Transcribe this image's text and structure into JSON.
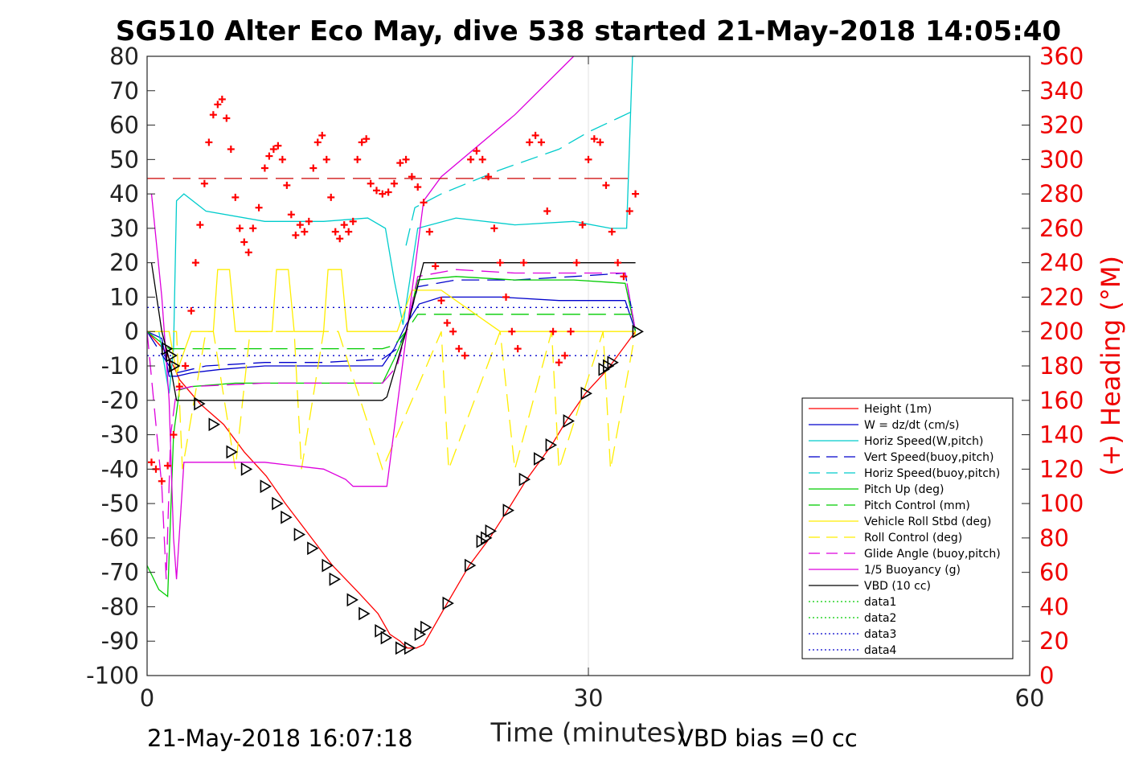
{
  "chart_data": {
    "type": "line",
    "title": "SG510 Alter Eco May, dive 538 started 21-May-2018 14:05:40",
    "xlabel": "Time (minutes)",
    "ylabel_right": "(+) Heading (°M)",
    "xlim": [
      0,
      60
    ],
    "ylim_left": [
      -100,
      80
    ],
    "ylim_right": [
      0,
      360
    ],
    "x_ticks": [
      0,
      30,
      60
    ],
    "y_ticks_left": [
      -100,
      -90,
      -80,
      -70,
      -60,
      -50,
      -40,
      -30,
      -20,
      -10,
      0,
      10,
      20,
      30,
      40,
      50,
      60,
      70,
      80
    ],
    "y_ticks_right": [
      0,
      20,
      40,
      60,
      80,
      100,
      120,
      140,
      160,
      180,
      200,
      220,
      240,
      260,
      280,
      300,
      320,
      340,
      360
    ],
    "grid": true,
    "legend_position": "lower-right",
    "footer_left": "21-May-2018 16:07:18",
    "footer_right": "VBD bias =0 cc",
    "series": [
      {
        "name": "Height (1m)",
        "color": "#ff0000",
        "style": "solid",
        "x": [
          0,
          1.3,
          1.5,
          1.8,
          2.2,
          3.6,
          5.2,
          6.6,
          8.1,
          9.4,
          11.0,
          12.6,
          14.4,
          15.7,
          16.5,
          17.2,
          17.7,
          18.3,
          18.8,
          20.4,
          21.9,
          23.3,
          24.5,
          25.8,
          27.5,
          28.5,
          29.8,
          31.3,
          33.2
        ],
        "y": [
          0,
          -6,
          -8,
          -10,
          -14,
          -21,
          -27,
          -35,
          -42,
          -50,
          -59,
          -68,
          -76,
          -82,
          -88,
          -90,
          -92,
          -92,
          -91,
          -79,
          -68,
          -60,
          -52,
          -43,
          -33,
          -26,
          -18,
          -11,
          0
        ]
      },
      {
        "name": "W = dz/dt (cm/s)",
        "color": "#0000cc",
        "style": "solid",
        "x": [
          0,
          1.0,
          1.5,
          2.0,
          3.0,
          5.0,
          8.0,
          11.0,
          14.0,
          16.0,
          16.8,
          17.6,
          18.5,
          20.0,
          24.0,
          28.0,
          32.5,
          33.2
        ],
        "y": [
          0,
          -2,
          -13,
          -13,
          -12,
          -11,
          -10,
          -10,
          -10,
          -10,
          -5,
          2,
          8,
          10,
          10,
          9,
          9,
          0
        ]
      },
      {
        "name": "Horiz Speed(W,pitch)",
        "color": "#00cccc",
        "style": "solid",
        "x": [
          0,
          0.8,
          1.5,
          1.8,
          2.0,
          2.5,
          4.0,
          8.0,
          12.0,
          15.0,
          16.2,
          16.8,
          17.4,
          18.4,
          21.0,
          25.0,
          29.0,
          31.5,
          32.6,
          33.0,
          33.2
        ],
        "y": [
          0,
          0,
          -18,
          -5,
          38,
          40,
          35,
          32,
          32,
          33,
          30,
          15,
          2,
          30,
          33,
          31,
          32,
          30,
          30,
          80,
          80
        ]
      },
      {
        "name": "Vert Speed(buoy,pitch)",
        "color": "#0000cc",
        "style": "dashed",
        "x": [
          0,
          1.5,
          2.0,
          4.0,
          8.0,
          12.0,
          16.0,
          17.0,
          17.6,
          18.4,
          21.0,
          25.0,
          29.0,
          32.5,
          33.2
        ],
        "y": [
          0,
          -10,
          -12,
          -10,
          -9,
          -9,
          -8,
          -5,
          0,
          13,
          15,
          15,
          16,
          17,
          0
        ]
      },
      {
        "name": "Horiz Speed(buoy,pitch)",
        "color": "#00cccc",
        "style": "dashed",
        "x": [
          17.6,
          18.2,
          20.0,
          24.0,
          28.0,
          30.0,
          32.0,
          33.0
        ],
        "y": [
          25,
          36,
          40,
          47,
          53,
          58,
          62,
          64
        ]
      },
      {
        "name": "Pitch Up (deg)",
        "color": "#00cc00",
        "style": "solid",
        "x": [
          0,
          0.8,
          1.4,
          1.8,
          2.2,
          3.0,
          6.0,
          10.0,
          14.0,
          16.0,
          16.8,
          17.6,
          18.4,
          21.0,
          25.0,
          29.0,
          32.5,
          33.2
        ],
        "y": [
          -68,
          -75,
          -77,
          -30,
          -17,
          -16,
          -15,
          -15,
          -15,
          -15,
          -8,
          0,
          15,
          16,
          15,
          15,
          14,
          0
        ]
      },
      {
        "name": "Pitch Control (mm)",
        "color": "#00cc00",
        "style": "dashed",
        "x": [
          0,
          1.5,
          2.0,
          16.0,
          16.8,
          17.6,
          18.4,
          33.2
        ],
        "y": [
          0,
          -5,
          -5,
          -5,
          -4,
          0,
          5,
          5
        ]
      },
      {
        "name": "Vehicle Roll Stbd (deg)",
        "color": "#ffee00",
        "style": "solid",
        "x": [
          0,
          1.5,
          2.0,
          3.0,
          4.5,
          4.8,
          5.6,
          6.0,
          8.5,
          8.8,
          9.6,
          10.0,
          12.0,
          12.3,
          13.2,
          13.6,
          16.0,
          17.0,
          18.0,
          20.0,
          24.0,
          28.0,
          32.0,
          33.2
        ],
        "y": [
          0,
          0,
          -12,
          0,
          0,
          18,
          18,
          0,
          0,
          18,
          18,
          0,
          0,
          18,
          18,
          0,
          0,
          0,
          12,
          12,
          0,
          0,
          0,
          0
        ]
      },
      {
        "name": "Roll Control (deg)",
        "color": "#ffee00",
        "style": "dashed",
        "x": [
          0,
          2.0,
          2.4,
          4.0,
          4.5,
          6.0,
          7.0,
          10.0,
          10.5,
          12.0,
          13.0,
          16.0,
          20.0,
          20.5,
          24.0,
          25.0,
          27.5,
          28.0,
          31.0,
          31.5,
          33.2
        ],
        "y": [
          0,
          0,
          -40,
          0,
          0,
          -40,
          0,
          0,
          -40,
          0,
          0,
          -40,
          0,
          -40,
          0,
          -40,
          0,
          -40,
          0,
          -40,
          0
        ]
      },
      {
        "name": "Glide Angle (buoy,pitch)",
        "color": "#dd00dd",
        "style": "dashed",
        "x": [
          0,
          1.0,
          1.3,
          1.6,
          2.0,
          3.0,
          8.0,
          14.0,
          16.0,
          17.0,
          17.6,
          18.4,
          21.0,
          25.0,
          29.0,
          32.5,
          33.2
        ],
        "y": [
          0,
          -45,
          -72,
          -30,
          -17,
          -16,
          -15,
          -15,
          -15,
          -10,
          0,
          16,
          18,
          17,
          17,
          17,
          0
        ]
      },
      {
        "name": "1/5 Buoyancy (g)",
        "color": "#dd00dd",
        "style": "solid",
        "x": [
          0.3,
          1.0,
          1.5,
          1.8,
          2.0,
          2.5,
          5.0,
          8.0,
          10.0,
          12.0,
          13.5,
          14.0,
          16.0,
          16.3,
          18.8,
          20.0,
          25.0,
          29.0
        ],
        "y": [
          40,
          10,
          -20,
          -60,
          -72,
          -38,
          -38,
          -38,
          -39,
          -40,
          -43,
          -45,
          -45,
          -45,
          38,
          45,
          63,
          80
        ]
      },
      {
        "name": "VBD (10 cc)",
        "color": "#000000",
        "style": "solid",
        "x": [
          0.3,
          1.0,
          1.5,
          2.0,
          3.0,
          10.0,
          16.0,
          16.3,
          17.6,
          18.8,
          20.0,
          30.0,
          33.2
        ],
        "y": [
          20,
          0,
          -8,
          -20,
          -20,
          -20,
          -20,
          -19,
          0,
          20,
          20,
          20,
          20
        ]
      },
      {
        "name": "data1",
        "color": "#00cc00",
        "style": "dotted",
        "x": [],
        "y": []
      },
      {
        "name": "data2",
        "color": "#00cc00",
        "style": "dotted",
        "x": [],
        "y": []
      },
      {
        "name": "data3",
        "color": "#0000cc",
        "style": "dotted",
        "x": [
          0,
          33.2
        ],
        "y": [
          7,
          7
        ]
      },
      {
        "name": "data4",
        "color": "#0000cc",
        "style": "dotted",
        "x": [
          0,
          33.2
        ],
        "y": [
          -7,
          -7
        ]
      }
    ],
    "reference_lines": [
      {
        "axis": "right",
        "value": 289,
        "color": "#cc0000",
        "style": "dashed",
        "x": [
          0,
          33.2
        ]
      }
    ],
    "heading_points": {
      "axis": "right",
      "color": "#ff0000",
      "marker": "+",
      "x": [
        0.3,
        0.6,
        1.0,
        1.4,
        1.8,
        2.2,
        2.6,
        3.0,
        3.3,
        3.6,
        3.9,
        4.2,
        4.5,
        4.8,
        5.1,
        5.4,
        5.7,
        6.0,
        6.3,
        6.6,
        6.9,
        7.2,
        7.6,
        8.0,
        8.3,
        8.6,
        8.9,
        9.2,
        9.5,
        9.8,
        10.1,
        10.4,
        10.7,
        11.0,
        11.3,
        11.6,
        11.9,
        12.2,
        12.5,
        12.8,
        13.1,
        13.4,
        13.7,
        14.0,
        14.3,
        14.6,
        14.9,
        15.2,
        15.6,
        16.0,
        16.4,
        16.8,
        17.2,
        17.6,
        18.0,
        18.4,
        18.8,
        19.2,
        19.6,
        20.0,
        20.4,
        20.8,
        21.2,
        21.6,
        22.0,
        22.4,
        22.8,
        23.2,
        23.6,
        24.0,
        24.4,
        24.8,
        25.2,
        25.6,
        26.0,
        26.4,
        26.8,
        27.2,
        27.6,
        28.0,
        28.4,
        28.8,
        29.2,
        29.6,
        30.0,
        30.4,
        30.8,
        31.2,
        31.6,
        32.0,
        32.4,
        32.8,
        33.2
      ],
      "y": [
        124,
        120,
        113,
        122,
        140,
        168,
        180,
        212,
        240,
        262,
        286,
        310,
        326,
        332,
        335,
        324,
        306,
        278,
        260,
        252,
        246,
        260,
        272,
        295,
        302,
        306,
        308,
        300,
        285,
        268,
        256,
        262,
        258,
        264,
        295,
        310,
        314,
        300,
        278,
        258,
        254,
        262,
        258,
        264,
        300,
        310,
        312,
        286,
        282,
        280,
        281,
        286,
        298,
        300,
        290,
        284,
        275,
        258,
        238,
        218,
        205,
        200,
        190,
        186,
        300,
        305,
        300,
        290,
        260,
        240,
        220,
        200,
        190,
        240,
        310,
        314,
        310,
        270,
        200,
        182,
        186,
        200,
        240,
        262,
        300,
        312,
        310,
        285,
        258,
        240,
        232,
        270,
        280
      ]
    },
    "depth_markers": {
      "axis": "left",
      "color": "#000000",
      "marker": "triangle",
      "x": [
        1.3,
        1.6,
        1.8,
        3.5,
        4.5,
        5.7,
        6.7,
        8.0,
        8.8,
        9.4,
        10.3,
        11.2,
        12.2,
        12.7,
        13.9,
        14.7,
        15.8,
        16.2,
        17.2,
        17.8,
        18.5,
        18.9,
        20.4,
        21.9,
        22.7,
        23.0,
        23.3,
        24.5,
        25.6,
        26.6,
        27.4,
        28.6,
        29.8,
        31.0,
        31.3,
        31.6,
        33.3
      ],
      "y": [
        -5,
        -7,
        -10,
        -21,
        -27,
        -35,
        -40,
        -45,
        -50,
        -54,
        -59,
        -63,
        -68,
        -72,
        -78,
        -82,
        -87,
        -89,
        -92,
        -92,
        -88,
        -86,
        -79,
        -68,
        -61,
        -60,
        -58,
        -52,
        -43,
        -37,
        -33,
        -26,
        -18,
        -11,
        -10,
        -9,
        0
      ]
    }
  }
}
